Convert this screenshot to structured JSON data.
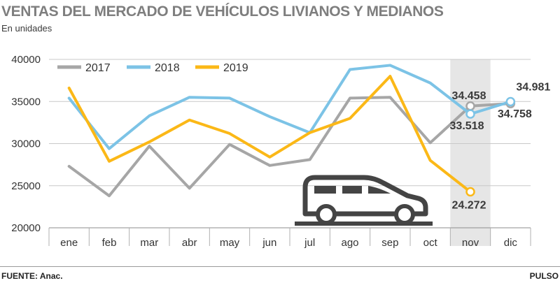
{
  "header": {
    "title": "VENTAS DEL MERCADO DE VEHÍCULOS LIVIANOS Y MEDIANOS",
    "subtitle": "En unidades"
  },
  "footer": {
    "source": "FUENTE: Anac.",
    "brand": "PULSO"
  },
  "colors": {
    "s2017": "#a6a6a6",
    "s2018": "#7cc3e6",
    "s2019": "#fbb817",
    "highlight_band": "#e6e6e6",
    "grid": "#c8c8c8",
    "car": "#444444"
  },
  "icon": "car-icon",
  "chart_data": {
    "type": "line",
    "categories": [
      "ene",
      "feb",
      "mar",
      "abr",
      "may",
      "jun",
      "jul",
      "ago",
      "sep",
      "oct",
      "nov",
      "dic"
    ],
    "yticks": [
      "40000",
      "35000",
      "30000",
      "25000",
      "20000"
    ],
    "ylim": [
      20000,
      40000
    ],
    "grid": "horizontal",
    "legend_position": "top-left",
    "highlight_category": "nov",
    "series": [
      {
        "name": "2017",
        "values": [
          27300,
          23800,
          29700,
          24700,
          29900,
          27400,
          28100,
          35400,
          35500,
          30100,
          34458,
          34758
        ]
      },
      {
        "name": "2018",
        "values": [
          35400,
          29400,
          33300,
          35500,
          35400,
          33200,
          31300,
          38800,
          39300,
          37200,
          33518,
          34981
        ]
      },
      {
        "name": "2019",
        "values": [
          36600,
          27900,
          30200,
          32800,
          31200,
          28400,
          31300,
          33000,
          38000,
          28000,
          24272,
          null
        ]
      }
    ],
    "labels": [
      {
        "text": "34.458",
        "series": 0,
        "index": 10
      },
      {
        "text": "34.758",
        "series": 0,
        "index": 11
      },
      {
        "text": "33.518",
        "series": 1,
        "index": 10
      },
      {
        "text": "34.981",
        "series": 1,
        "index": 11
      },
      {
        "text": "24.272",
        "series": 2,
        "index": 10
      }
    ]
  }
}
